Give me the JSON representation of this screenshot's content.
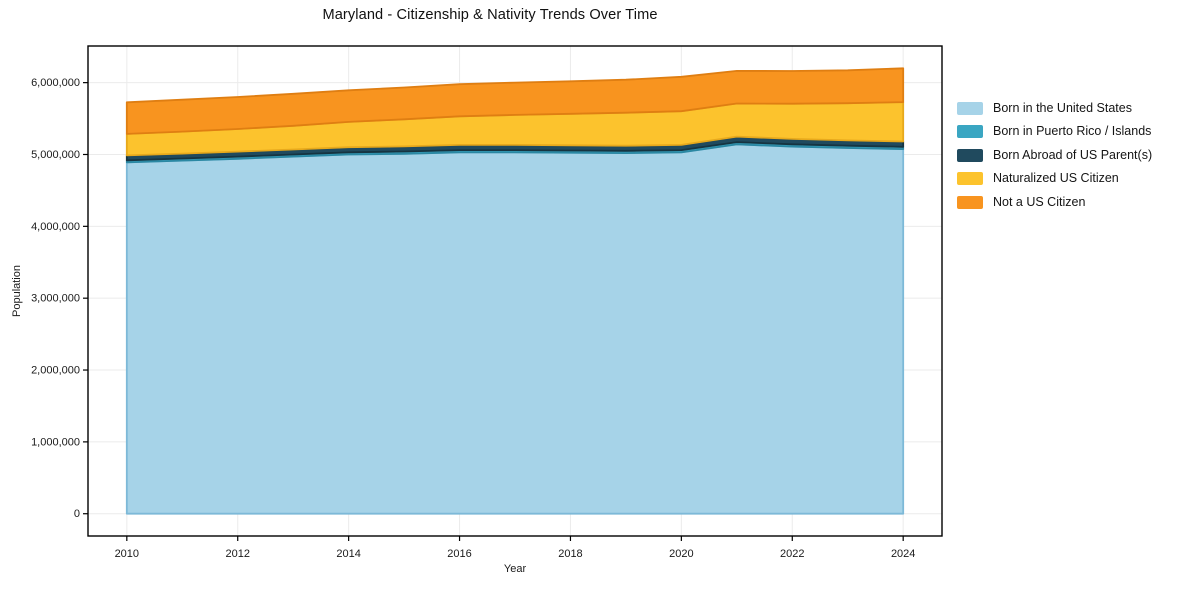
{
  "title": "Maryland - Citizenship & Nativity Trends Over Time",
  "axes": {
    "x_label": "Year",
    "y_label": "Population"
  },
  "legend": {
    "items": [
      {
        "label": "Born in the United States",
        "color": "#a6d3e8"
      },
      {
        "label": "Born in Puerto Rico / Islands",
        "color": "#3aa6c2"
      },
      {
        "label": "Born Abroad of US Parent(s)",
        "color": "#204a5e"
      },
      {
        "label": "Naturalized US Citizen",
        "color": "#fcc32d"
      },
      {
        "label": "Not a US Citizen",
        "color": "#f8941f"
      }
    ]
  },
  "chart_data": {
    "type": "area",
    "stacked": true,
    "title": "Maryland - Citizenship & Nativity Trends Over Time",
    "xlabel": "Year",
    "ylabel": "Population",
    "grid": true,
    "legend_position": "right-outside",
    "x": [
      2010,
      2011,
      2012,
      2013,
      2014,
      2015,
      2016,
      2017,
      2018,
      2019,
      2020,
      2021,
      2022,
      2023,
      2024
    ],
    "xlim": [
      2009.3,
      2024.7
    ],
    "ylim": [
      -310000,
      6510000
    ],
    "x_ticks": [
      2010,
      2012,
      2014,
      2016,
      2018,
      2020,
      2022,
      2024
    ],
    "y_ticks": [
      0,
      1000000,
      2000000,
      3000000,
      4000000,
      5000000,
      6000000
    ],
    "y_tick_labels": [
      "0",
      "1,000,000",
      "2,000,000",
      "3,000,000",
      "4,000,000",
      "5,000,000",
      "6,000,000"
    ],
    "series": [
      {
        "id": "born-us",
        "name": "Born in the United States",
        "color": "#a6d3e8",
        "edge": "#7db9d8",
        "values": [
          4890000,
          4915000,
          4940000,
          4970000,
          5000000,
          5010000,
          5030000,
          5030000,
          5025000,
          5020000,
          5030000,
          5140000,
          5110000,
          5090000,
          5075000
        ]
      },
      {
        "id": "born-pr-islands",
        "name": "Born in Puerto Rico / Islands",
        "color": "#3aa6c2",
        "edge": "#2b88a3",
        "values": [
          29000,
          29000,
          30000,
          30000,
          30000,
          31000,
          31000,
          31000,
          31000,
          31000,
          31000,
          33000,
          32000,
          32000,
          32000
        ]
      },
      {
        "id": "born-abroad",
        "name": "Born Abroad of US Parent(s)",
        "color": "#204a5e",
        "edge": "#163441",
        "values": [
          68000,
          69000,
          70000,
          70000,
          71000,
          71000,
          72000,
          72000,
          72000,
          72000,
          72000,
          76000,
          75000,
          74000,
          74000
        ]
      },
      {
        "id": "naturalized",
        "name": "Naturalized US Citizen",
        "color": "#fcc32d",
        "edge": "#e7a91c",
        "values": [
          300000,
          305000,
          315000,
          330000,
          352000,
          378000,
          398000,
          418000,
          438000,
          458000,
          470000,
          460000,
          490000,
          518000,
          548000
        ]
      },
      {
        "id": "not-citizen",
        "name": "Not a US Citizen",
        "color": "#f8941f",
        "edge": "#df7e12",
        "values": [
          440000,
          445000,
          445000,
          445000,
          440000,
          442000,
          448000,
          450000,
          452000,
          460000,
          478000,
          455000,
          455000,
          458000,
          470000
        ]
      }
    ]
  }
}
